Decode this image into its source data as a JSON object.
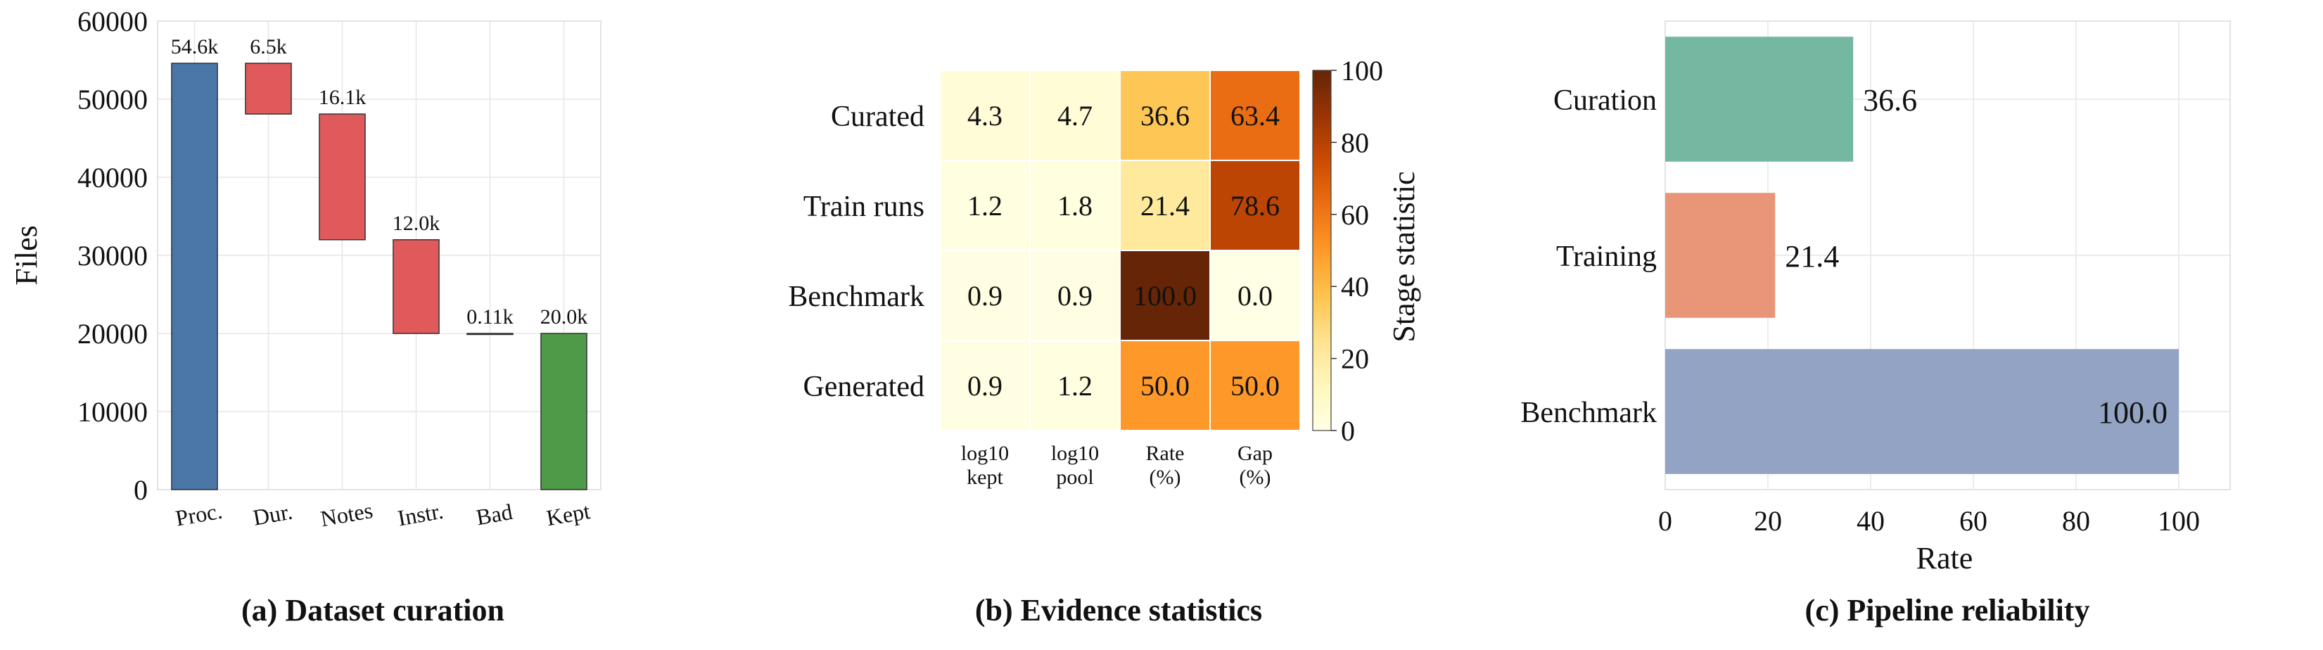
{
  "panels": {
    "a": {
      "caption": "(a) Dataset curation",
      "ylabel": "Files",
      "ylim": [
        0,
        60000
      ],
      "yticks": [
        "0",
        "10000",
        "20000",
        "30000",
        "40000",
        "50000",
        "60000"
      ],
      "colors": {
        "start": "#4a76a8",
        "drop": "#e05a5c",
        "end": "#4f9a48"
      }
    },
    "b": {
      "caption": "(b) Evidence statistics",
      "colorbar_label": "Stage statistic",
      "colorbar_ticks": [
        "0",
        "20",
        "40",
        "60",
        "80",
        "100"
      ],
      "colormap": "YlOrBr"
    },
    "c": {
      "caption": "(c) Pipeline reliability",
      "xlabel": "Rate",
      "xticks": [
        "0",
        "20",
        "40",
        "60",
        "80",
        "100"
      ]
    }
  },
  "chart_data": [
    {
      "type": "bar",
      "subtype": "waterfall",
      "categories": [
        "Proc.",
        "Dur.",
        "Notes",
        "Instr.",
        "Bad",
        "Kept"
      ],
      "values": [
        54600,
        -6500,
        -16100,
        -12000,
        -110,
        20000
      ],
      "data_labels": [
        "54.6k",
        "6.5k",
        "16.1k",
        "12.0k",
        "0.11k",
        "20.0k"
      ],
      "ylabel": "Files",
      "ylim": [
        0,
        60000
      ],
      "grid": true
    },
    {
      "type": "heatmap",
      "rows": [
        "Curated",
        "Train runs",
        "Benchmark",
        "Generated"
      ],
      "columns": [
        "log10\nkept",
        "log10\npool",
        "Rate\n(%)",
        "Gap\n(%)"
      ],
      "values": [
        [
          4.3,
          4.7,
          36.6,
          63.4
        ],
        [
          1.2,
          1.8,
          21.4,
          78.6
        ],
        [
          0.9,
          0.9,
          100.0,
          0.0
        ],
        [
          0.9,
          1.2,
          50.0,
          50.0
        ]
      ],
      "cell_labels": [
        [
          "4.3",
          "4.7",
          "36.6",
          "63.4"
        ],
        [
          "1.2",
          "1.8",
          "21.4",
          "78.6"
        ],
        [
          "0.9",
          "0.9",
          "100.0",
          "0.0"
        ],
        [
          "0.9",
          "1.2",
          "50.0",
          "50.0"
        ]
      ],
      "colorbar": {
        "label": "Stage statistic",
        "range": [
          0,
          100
        ]
      }
    },
    {
      "type": "bar",
      "orientation": "horizontal",
      "categories": [
        "Curation",
        "Training",
        "Benchmark"
      ],
      "values": [
        36.6,
        21.4,
        100.0
      ],
      "data_labels": [
        "36.6",
        "21.4",
        "100.0"
      ],
      "colors": [
        "#74b8a1",
        "#e99678",
        "#93a3c3"
      ],
      "xlabel": "Rate",
      "xlim": [
        0,
        110
      ],
      "grid": true
    }
  ]
}
